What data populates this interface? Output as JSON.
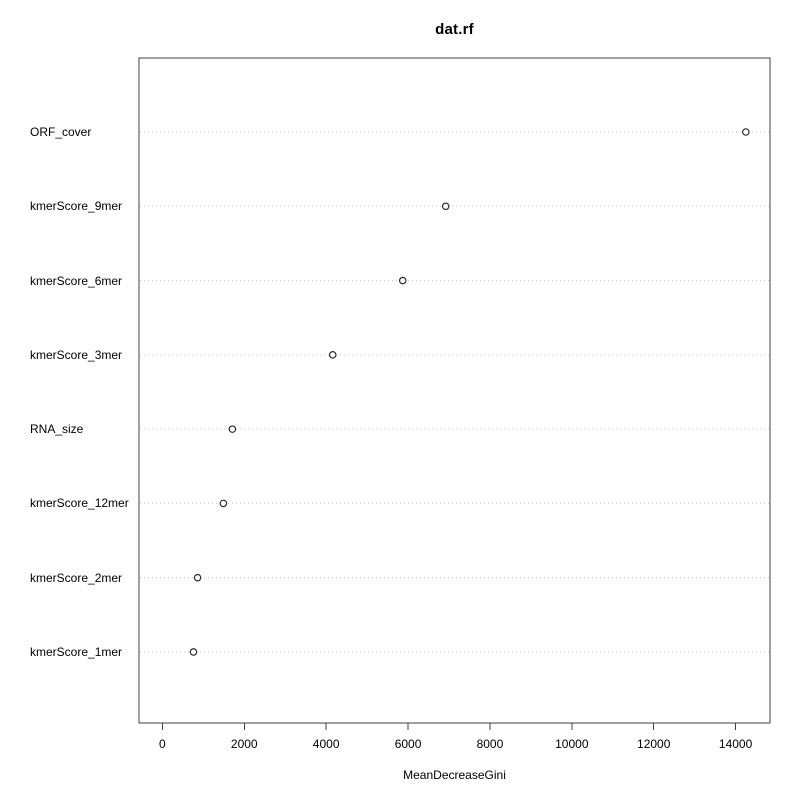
{
  "figure": {
    "title": "dat.rf",
    "x_axis_label": "MeanDecreaseGini"
  },
  "chart_data": {
    "type": "scatter",
    "subtype": "r-dotchart-variable-importance",
    "title": "dat.rf",
    "xlabel": "MeanDecreaseGini",
    "ylabel": "",
    "legend": "none",
    "grid": "dotted horizontal line per category",
    "categories_top_to_bottom": [
      "ORF_cover",
      "kmerScore_9mer",
      "kmerScore_6mer",
      "kmerScore_3mer",
      "RNA_size",
      "kmerScore_12mer",
      "kmerScore_2mer",
      "kmerScore_1mer"
    ],
    "values": [
      14250,
      6920,
      5870,
      4160,
      1710,
      1490,
      860,
      760
    ],
    "xticks": [
      0,
      2000,
      4000,
      6000,
      8000,
      10000,
      12000,
      14000
    ],
    "xlim": [
      -571,
      14840
    ],
    "marker": "open-circle",
    "colors": {
      "point_stroke": "#2b2b2b",
      "point_fill": "#ffffff",
      "gridline": "#c3c3c3",
      "box_border": "#404040",
      "tick": "#404040",
      "text": "#000000",
      "background": "#ffffff"
    }
  }
}
